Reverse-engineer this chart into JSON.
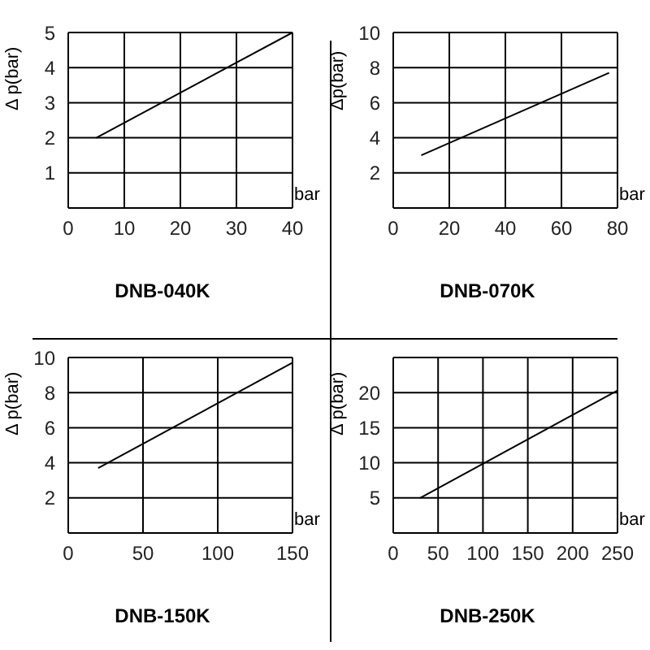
{
  "chart_data": [
    {
      "type": "line",
      "title": "DNB-040K",
      "xlabel": "bar",
      "ylabel": "Δ p(bar)",
      "x": [
        5,
        40
      ],
      "values": [
        2,
        5
      ],
      "color": "#000000",
      "xlim": [
        0,
        40
      ],
      "xticks": [
        0,
        10,
        20,
        30,
        40
      ],
      "ylim": [
        0,
        5
      ],
      "yticks": [
        1,
        2,
        3,
        4,
        5
      ],
      "grid": true
    },
    {
      "type": "line",
      "title": "DNB-070K",
      "xlabel": "bar",
      "ylabel": "Δp(bar)",
      "x": [
        10,
        77
      ],
      "values": [
        3,
        7.7
      ],
      "color": "#000000",
      "xlim": [
        0,
        80
      ],
      "xticks": [
        0,
        20,
        40,
        60,
        80
      ],
      "ylim": [
        0,
        10
      ],
      "yticks": [
        2,
        4,
        6,
        8,
        10
      ],
      "grid": true
    },
    {
      "type": "line",
      "title": "DNB-150K",
      "xlabel": "bar",
      "ylabel": "Δ p(bar)",
      "x": [
        20,
        150
      ],
      "values": [
        3.7,
        9.7
      ],
      "color": "#000000",
      "xlim": [
        0,
        150
      ],
      "xticks": [
        0,
        50,
        100,
        150
      ],
      "ylim": [
        0,
        10
      ],
      "yticks": [
        2,
        4,
        6,
        8,
        10
      ],
      "grid": true
    },
    {
      "type": "line",
      "title": "DNB-250K",
      "xlabel": "bar",
      "ylabel": "Δ p(bar)",
      "x": [
        30,
        250
      ],
      "values": [
        5,
        20.3
      ],
      "color": "#000000",
      "xlim": [
        0,
        250
      ],
      "xticks": [
        0,
        50,
        100,
        150,
        200,
        250
      ],
      "ylim": [
        0,
        25
      ],
      "yticks": [
        5,
        10,
        15,
        20,
        {
          "value": 25,
          "label": null
        }
      ],
      "grid": true
    }
  ]
}
